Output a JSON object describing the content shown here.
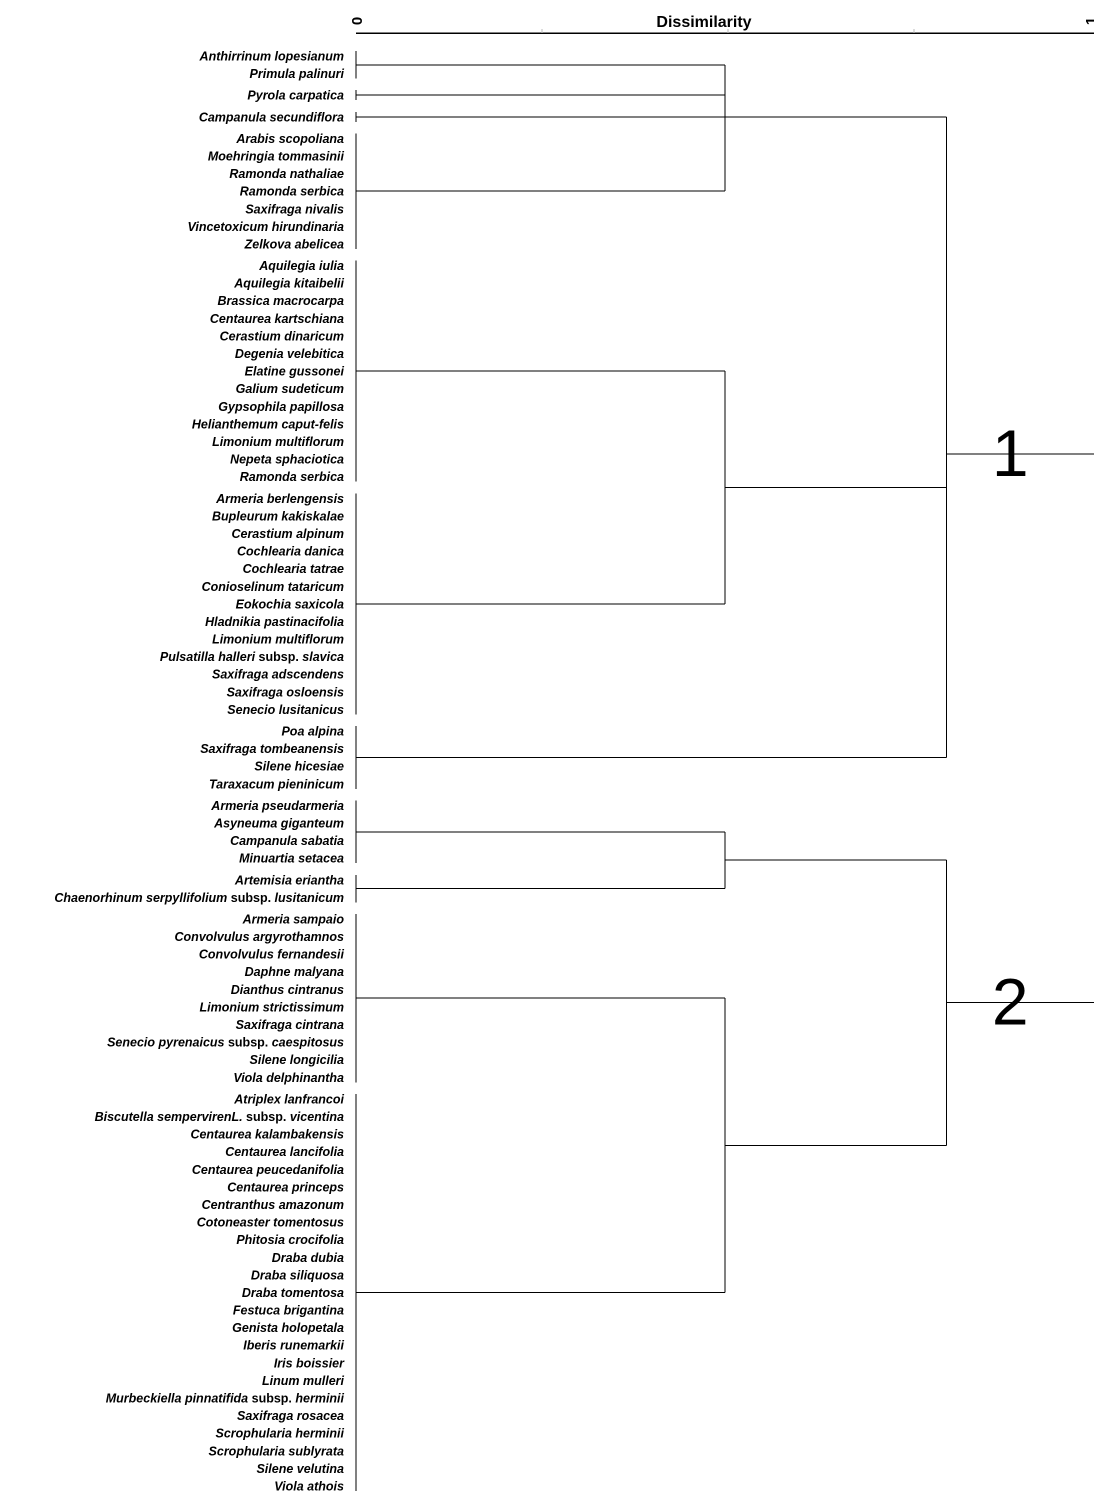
{
  "axis": {
    "title": "Dissimilarity",
    "min_label": "0",
    "max_label": "1"
  },
  "clusters": [
    "1",
    "2"
  ],
  "groups": [
    {
      "branch_dissimilarity": 0.0,
      "taxa": [
        {
          "name": "Anthirrinum lopesianum"
        },
        {
          "name": "Primula palinuri"
        }
      ]
    },
    {
      "branch_dissimilarity": 0.0,
      "taxa": [
        {
          "name": "Pyrola carpatica"
        }
      ]
    },
    {
      "branch_dissimilarity": 0.0,
      "taxa": [
        {
          "name": "Campanula secundiflora"
        }
      ]
    },
    {
      "branch_dissimilarity": 0.0,
      "taxa": [
        {
          "name": "Arabis scopoliana"
        },
        {
          "name": "Moehringia tommasinii"
        },
        {
          "name": "Ramonda nathaliae"
        },
        {
          "name": "Ramonda serbica"
        },
        {
          "name": "Saxifraga nivalis"
        },
        {
          "name": "Vincetoxicum hirundinaria"
        },
        {
          "name": "Zelkova abelicea"
        }
      ]
    },
    {
      "branch_dissimilarity": 0.0,
      "taxa": [
        {
          "name": "Aquilegia iulia"
        },
        {
          "name": "Aquilegia kitaibelii"
        },
        {
          "name": "Brassica macrocarpa"
        },
        {
          "name": "Centaurea kartschiana"
        },
        {
          "name": "Cerastium dinaricum"
        },
        {
          "name": "Degenia velebitica"
        },
        {
          "name": "Elatine gussonei"
        },
        {
          "name": "Galium sudeticum"
        },
        {
          "name": "Gypsophila papillosa"
        },
        {
          "name": "Helianthemum caput-felis"
        },
        {
          "name": "Limonium multiflorum"
        },
        {
          "name": "Nepeta sphaciotica"
        },
        {
          "name": "Ramonda serbica"
        }
      ]
    },
    {
      "branch_dissimilarity": 0.0,
      "taxa": [
        {
          "name": "Armeria berlengensis"
        },
        {
          "name": "Bupleurum kakiskalae"
        },
        {
          "name": "Cerastium alpinum"
        },
        {
          "name": "Cochlearia danica"
        },
        {
          "name": "Cochlearia tatrae"
        },
        {
          "name": "Conioselinum tataricum"
        },
        {
          "name": "Eokochia saxicola"
        },
        {
          "name": "Hladnikia pastinacifolia"
        },
        {
          "name": "Limonium multiflorum"
        },
        {
          "name": "Pulsatilla halleri",
          "suffix": " subsp. ",
          "suffix_italic": "slavica"
        },
        {
          "name": "Saxifraga adscendens"
        },
        {
          "name": "Saxifraga osloensis"
        },
        {
          "name": "Senecio lusitanicus"
        }
      ]
    },
    {
      "branch_dissimilarity": 0.0,
      "taxa": [
        {
          "name": "Poa alpina"
        },
        {
          "name": "Saxifraga tombeanensis"
        },
        {
          "name": "Silene hicesiae"
        },
        {
          "name": "Taraxacum pieninicum"
        }
      ]
    },
    {
      "branch_dissimilarity": 0.0,
      "taxa": [
        {
          "name": "Armeria pseudarmeria"
        },
        {
          "name": "Asyneuma giganteum"
        },
        {
          "name": "Campanula sabatia"
        },
        {
          "name": "Minuartia setacea"
        }
      ]
    },
    {
      "branch_dissimilarity": 0.0,
      "taxa": [
        {
          "name": "Artemisia eriantha"
        },
        {
          "name": "Chaenorhinum serpyllifolium",
          "suffix": " subsp. ",
          "suffix_italic": "lusitanicum"
        }
      ]
    },
    {
      "branch_dissimilarity": 0.0,
      "taxa": [
        {
          "name": "Armeria sampaio"
        },
        {
          "name": "Convolvulus argyrothamnos"
        },
        {
          "name": "Convolvulus fernandesii"
        },
        {
          "name": "Daphne malyana"
        },
        {
          "name": "Dianthus cintranus"
        },
        {
          "name": "Limonium strictissimum"
        },
        {
          "name": "Saxifraga cintrana"
        },
        {
          "name": "Senecio pyrenaicus",
          "suffix": " subsp. ",
          "suffix_italic": "caespitosus"
        },
        {
          "name": "Silene longicilia"
        },
        {
          "name": "Viola delphinantha"
        }
      ]
    },
    {
      "branch_dissimilarity": 0.0,
      "taxa": [
        {
          "name": "Atriplex lanfrancoi"
        },
        {
          "name": "Biscutella sempervirenL.",
          "suffix": " subsp. ",
          "suffix_italic": "vicentina"
        },
        {
          "name": "Centaurea kalambakensis"
        },
        {
          "name": "Centaurea lancifolia"
        },
        {
          "name": "Centaurea peucedanifolia"
        },
        {
          "name": "Centaurea princeps"
        },
        {
          "name": "Centranthus amazonum"
        },
        {
          "name": "Cotoneaster tomentosus"
        },
        {
          "name": "Phitosia crocifolia"
        },
        {
          "name": "Draba dubia"
        },
        {
          "name": "Draba siliquosa"
        },
        {
          "name": "Draba tomentosa"
        },
        {
          "name": "Festuca brigantina"
        },
        {
          "name": "Genista holopetala"
        },
        {
          "name": "Iberis runemarkii"
        },
        {
          "name": "Iris boissier"
        },
        {
          "name": "Linum mulleri"
        },
        {
          "name": "Murbeckiella pinnatifida",
          "suffix": " subsp. ",
          "suffix_italic": "herminii"
        },
        {
          "name": "Saxifraga rosacea"
        },
        {
          "name": "Scrophularia herminii"
        },
        {
          "name": "Scrophularia sublyrata"
        },
        {
          "name": "Silene velutina"
        },
        {
          "name": "Viola athois"
        }
      ]
    }
  ],
  "merges": [
    {
      "id": "m1",
      "children": [
        "g0",
        "g1",
        "g2",
        "g3"
      ],
      "dissimilarity": 0.5
    },
    {
      "id": "m2",
      "children": [
        "g4",
        "g5"
      ],
      "dissimilarity": 0.5
    },
    {
      "id": "m3",
      "children": [
        "m1",
        "m2",
        "g6"
      ],
      "dissimilarity": 0.8
    },
    {
      "id": "m4",
      "children": [
        "g7",
        "g8"
      ],
      "dissimilarity": 0.5
    },
    {
      "id": "m5",
      "children": [
        "g9",
        "g10"
      ],
      "dissimilarity": 0.5
    },
    {
      "id": "m6",
      "children": [
        "m4",
        "m5"
      ],
      "dissimilarity": 0.8
    }
  ],
  "roots": [
    {
      "node": "m3",
      "cluster": "1"
    },
    {
      "node": "m6",
      "cluster": "2"
    }
  ]
}
